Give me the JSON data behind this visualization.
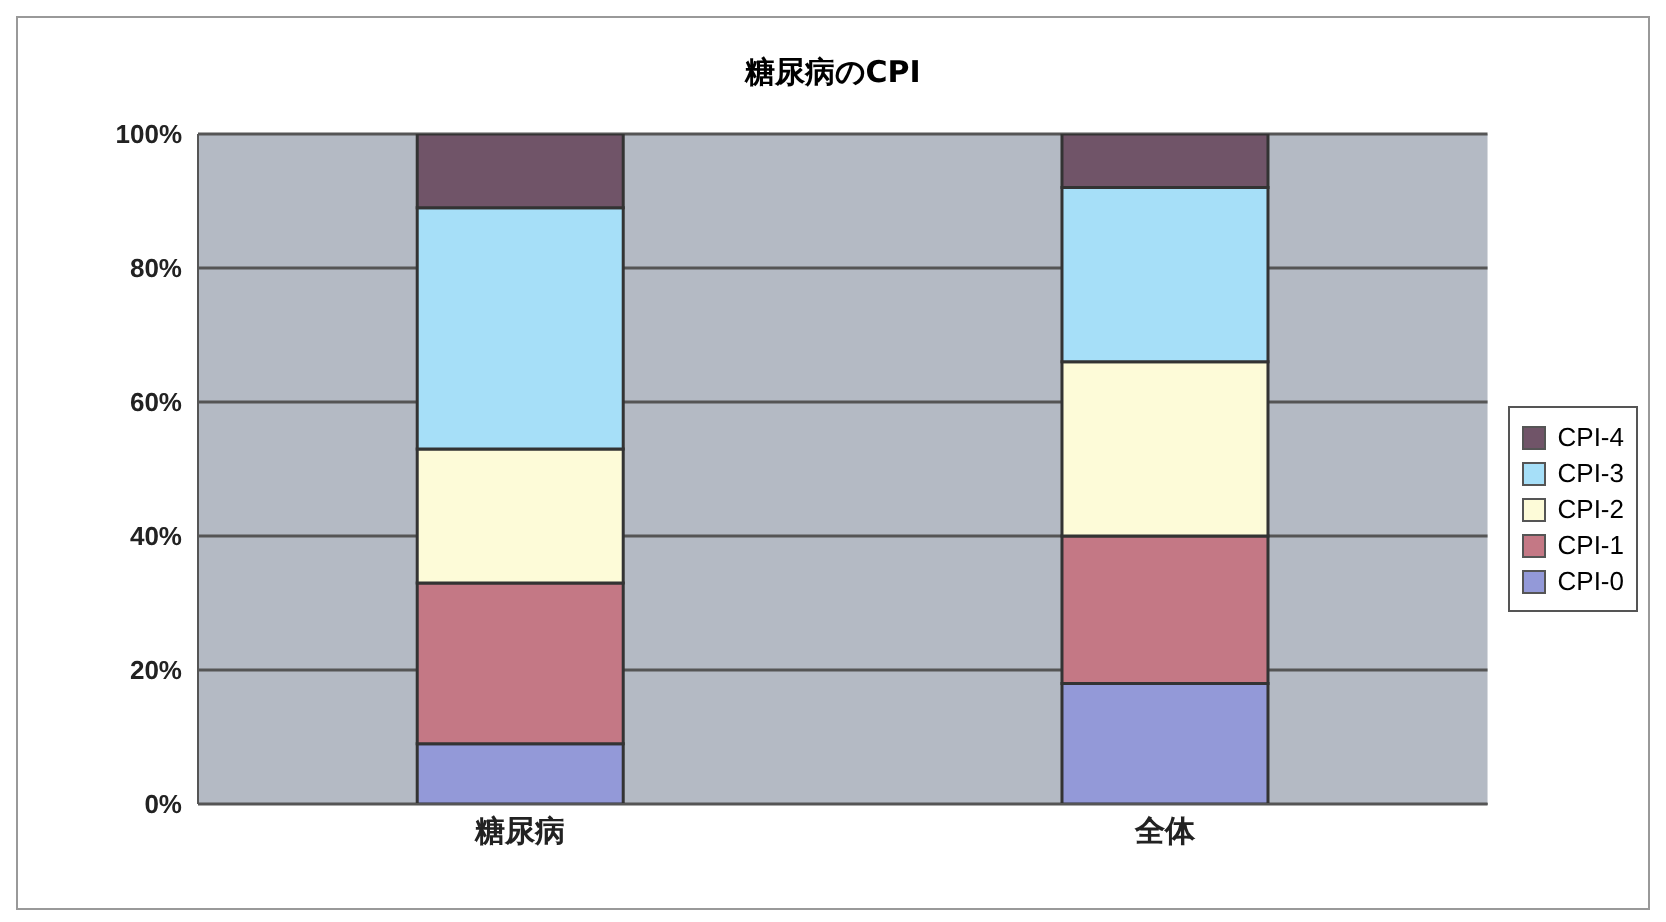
{
  "chart_data": {
    "type": "bar",
    "title": "糖尿病のCPI",
    "categories": [
      "糖尿病",
      "全体"
    ],
    "stacked": true,
    "series": [
      {
        "name": "CPI-0",
        "color": "#9399d8",
        "values": [
          9,
          18
        ]
      },
      {
        "name": "CPI-1",
        "color": "#c47885",
        "values": [
          24,
          22
        ]
      },
      {
        "name": "CPI-2",
        "color": "#fdfbd8",
        "values": [
          20,
          26
        ]
      },
      {
        "name": "CPI-3",
        "color": "#a6dff8",
        "values": [
          36,
          26
        ]
      },
      {
        "name": "CPI-4",
        "color": "#705468",
        "values": [
          11,
          8
        ]
      }
    ],
    "ylim": [
      0,
      100
    ],
    "yticks": [
      {
        "value": 0,
        "label": "0%"
      },
      {
        "value": 20,
        "label": "20%"
      },
      {
        "value": 40,
        "label": "40%"
      },
      {
        "value": 60,
        "label": "60%"
      },
      {
        "value": 80,
        "label": "80%"
      },
      {
        "value": 100,
        "label": "100%"
      }
    ],
    "grid": "y",
    "legend": "right"
  }
}
